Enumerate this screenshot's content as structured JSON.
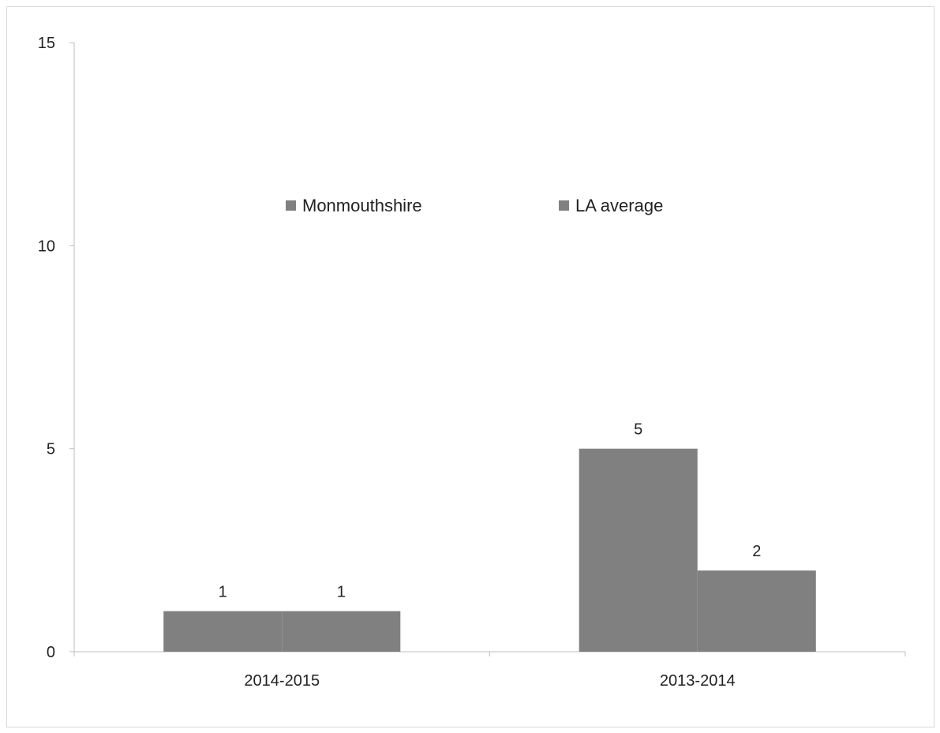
{
  "chart_data": {
    "type": "bar",
    "categories": [
      "2014-2015",
      "2013-2014"
    ],
    "series": [
      {
        "name": "Monmouthshire",
        "values": [
          1,
          5
        ],
        "color": "#808080"
      },
      {
        "name": "LA average",
        "values": [
          1,
          2
        ],
        "color": "#808080"
      }
    ],
    "ylim": [
      0,
      15
    ],
    "yticks": [
      0,
      5,
      10,
      15
    ],
    "data_labels": true,
    "legend": "top-center",
    "grid": false,
    "title": "",
    "xlabel": "",
    "ylabel": ""
  }
}
